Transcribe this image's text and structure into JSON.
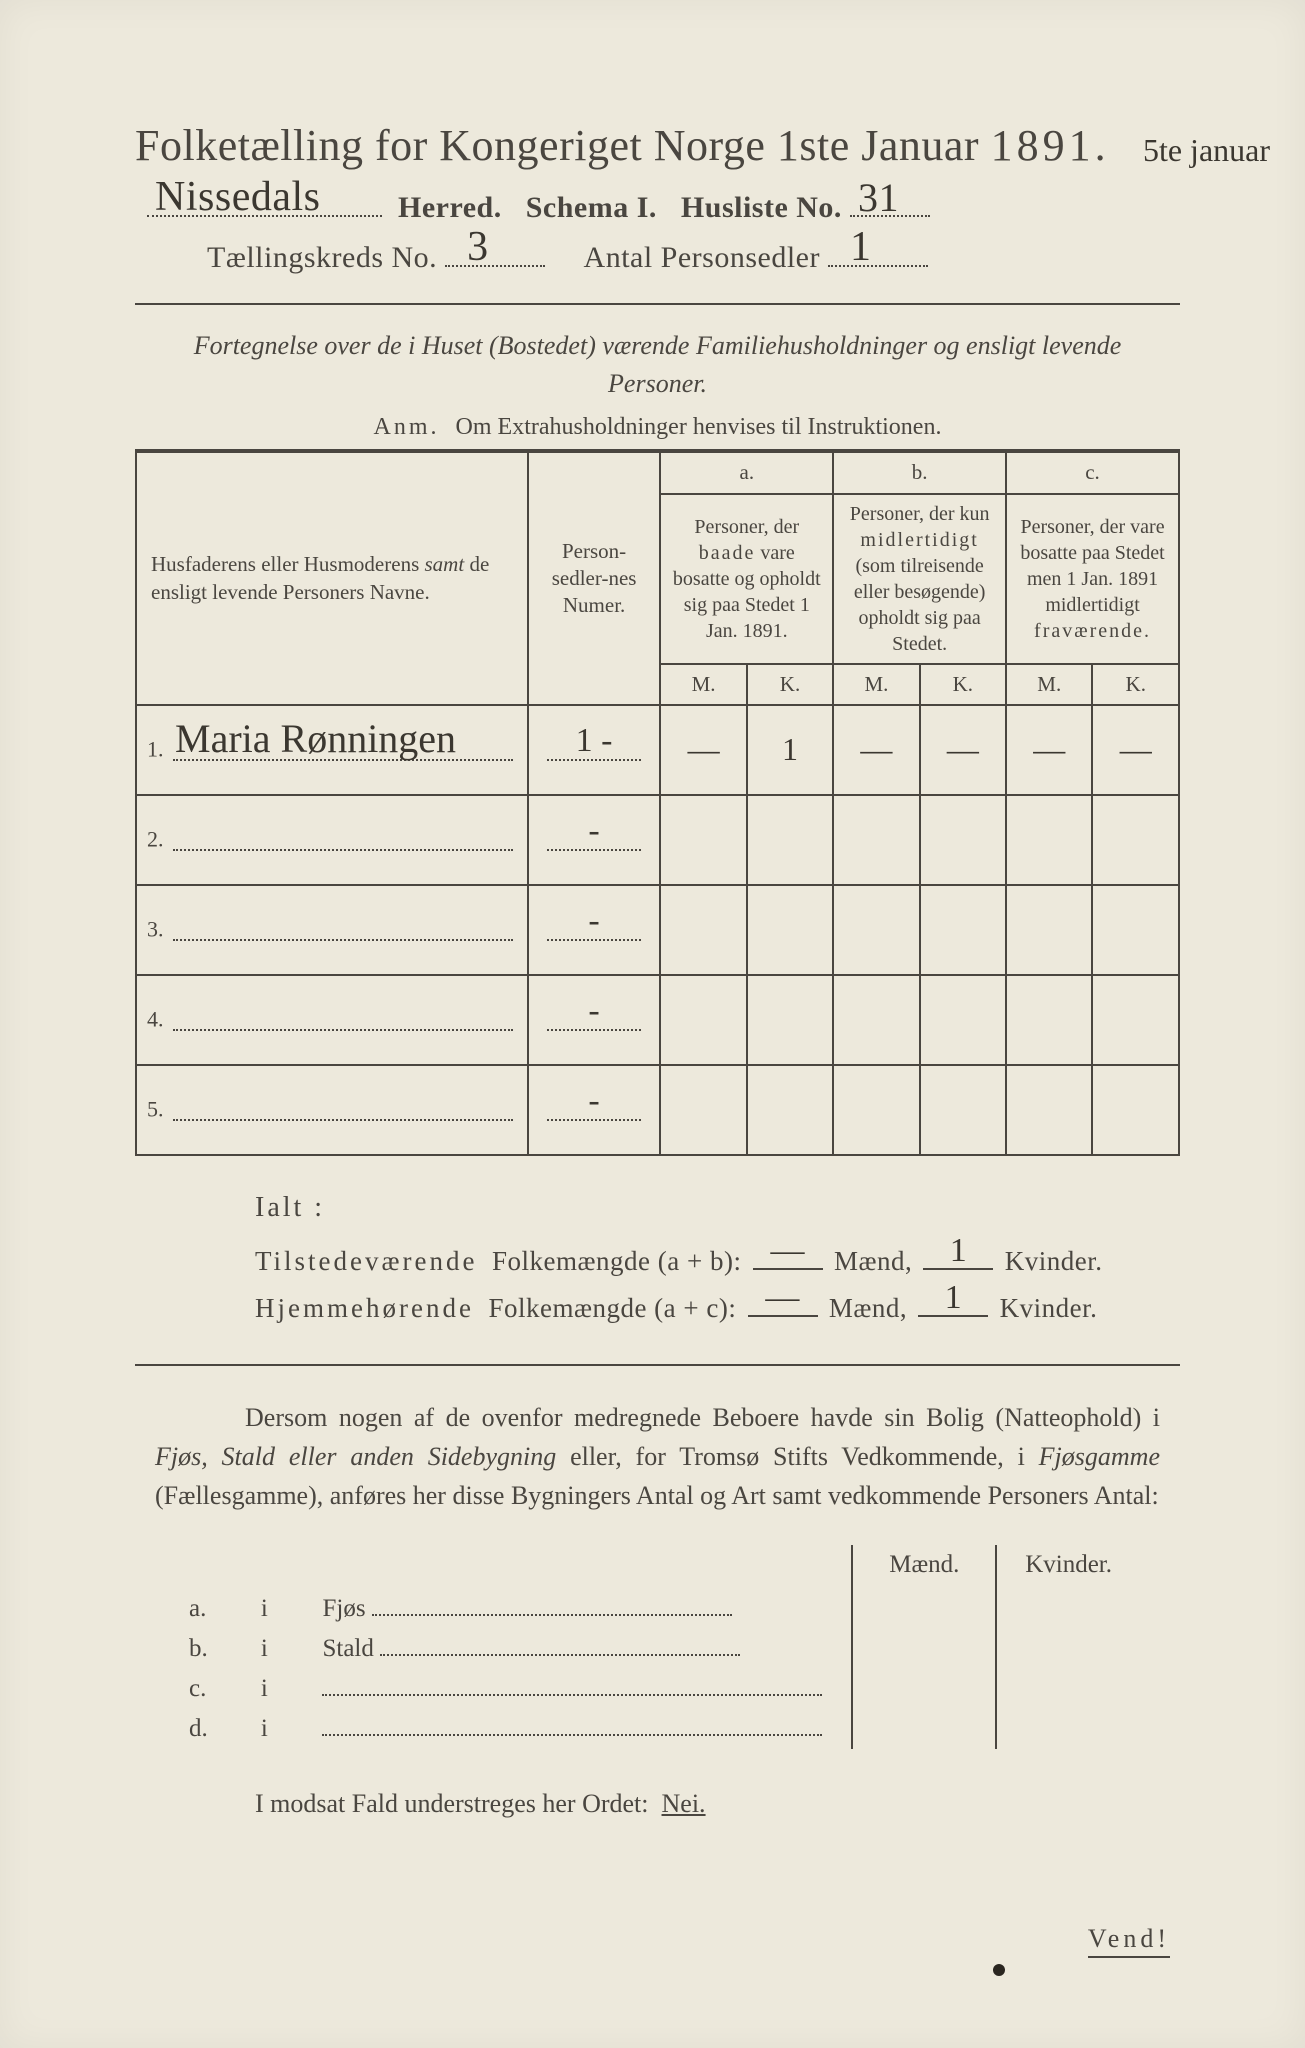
{
  "colors": {
    "paper": "#ede9dc",
    "ink": "#4a4640",
    "handwriting": "#3b3730",
    "background": "#3a3a38"
  },
  "header": {
    "title_prefix": "Folketælling for Kongeriget Norge 1ste Januar",
    "year": "1891.",
    "herred_label": "Herred.",
    "schema_label": "Schema I.",
    "husliste_label": "Husliste No.",
    "kreds_label": "Tællingskreds No.",
    "antal_label": "Antal Personsedler",
    "hw_herred": "Nissedals",
    "hw_husliste": "31",
    "hw_kreds": "3",
    "hw_antal": "1",
    "margin_note": "5te januar"
  },
  "subtitle": "Fortegnelse over de i Huset (Bostedet) værende Familiehusholdninger og ensligt levende Personer.",
  "anm": {
    "label": "Anm.",
    "text": "Om Extrahusholdninger henvises til Instruktionen."
  },
  "table": {
    "col_names_hdr": "Husfaderens eller Husmoderens <i>samt</i> de ensligt levende Personers Navne.",
    "col_num_hdr": "Person-sedler-nes Numer.",
    "col_a_letter": "a.",
    "col_a_hdr": "Personer, der baade vare bosatte og opholdt sig paa Stedet 1 Jan. 1891.",
    "col_b_letter": "b.",
    "col_b_hdr": "Personer, der kun midlertidigt (som tilreisende eller besøgende) opholdt sig paa Stedet.",
    "col_c_letter": "c.",
    "col_c_hdr": "Personer, der vare bosatte paa Stedet men 1 Jan. 1891 midlertidigt fraværende.",
    "m": "M.",
    "k": "K.",
    "rows": [
      {
        "n": "1.",
        "name": "Maria Rønningen",
        "num": "1 -",
        "a_m": "—",
        "a_k": "1",
        "b_m": "—",
        "b_k": "—",
        "c_m": "—",
        "c_k": "—"
      },
      {
        "n": "2.",
        "name": "",
        "num": "-",
        "a_m": "",
        "a_k": "",
        "b_m": "",
        "b_k": "",
        "c_m": "",
        "c_k": ""
      },
      {
        "n": "3.",
        "name": "",
        "num": "-",
        "a_m": "",
        "a_k": "",
        "b_m": "",
        "b_k": "",
        "c_m": "",
        "c_k": ""
      },
      {
        "n": "4.",
        "name": "",
        "num": "-",
        "a_m": "",
        "a_k": "",
        "b_m": "",
        "b_k": "",
        "c_m": "",
        "c_k": ""
      },
      {
        "n": "5.",
        "name": "",
        "num": "-",
        "a_m": "",
        "a_k": "",
        "b_m": "",
        "b_k": "",
        "c_m": "",
        "c_k": ""
      }
    ]
  },
  "ialt": {
    "label": "Ialt :",
    "row1_a": "Tilstedeværende",
    "row1_b": "Folkemængde (a + b):",
    "row2_a": "Hjemmehørende",
    "row2_b": "Folkemængde (a + c):",
    "maend": "Mænd,",
    "kvinder": "Kvinder.",
    "hw_m1": "—",
    "hw_k1": "1",
    "hw_m2": "—",
    "hw_k2": "1"
  },
  "dersom": {
    "text1": "Dersom nogen af de ovenfor medregnede Beboere havde sin Bolig (Natteophold) i ",
    "it1": "Fjøs, Stald eller anden Sidebygning",
    "text2": " eller, for Tromsø Stifts Vedkommende, i ",
    "it2": "Fjøsgamme",
    "text3": " (Fællesgamme), anføres her disse Bygningers Antal og Art samt vedkommende Personers Antal:"
  },
  "bldg": {
    "hdr_m": "Mænd.",
    "hdr_k": "Kvinder.",
    "rows": [
      {
        "l": "a.",
        "i": "i",
        "name": "Fjøs"
      },
      {
        "l": "b.",
        "i": "i",
        "name": "Stald"
      },
      {
        "l": "c.",
        "i": "i",
        "name": ""
      },
      {
        "l": "d.",
        "i": "i",
        "name": ""
      }
    ]
  },
  "modsat": {
    "text": "I modsat Fald understreges her Ordet:",
    "nei": "Nei."
  },
  "vend": "Vend!"
}
